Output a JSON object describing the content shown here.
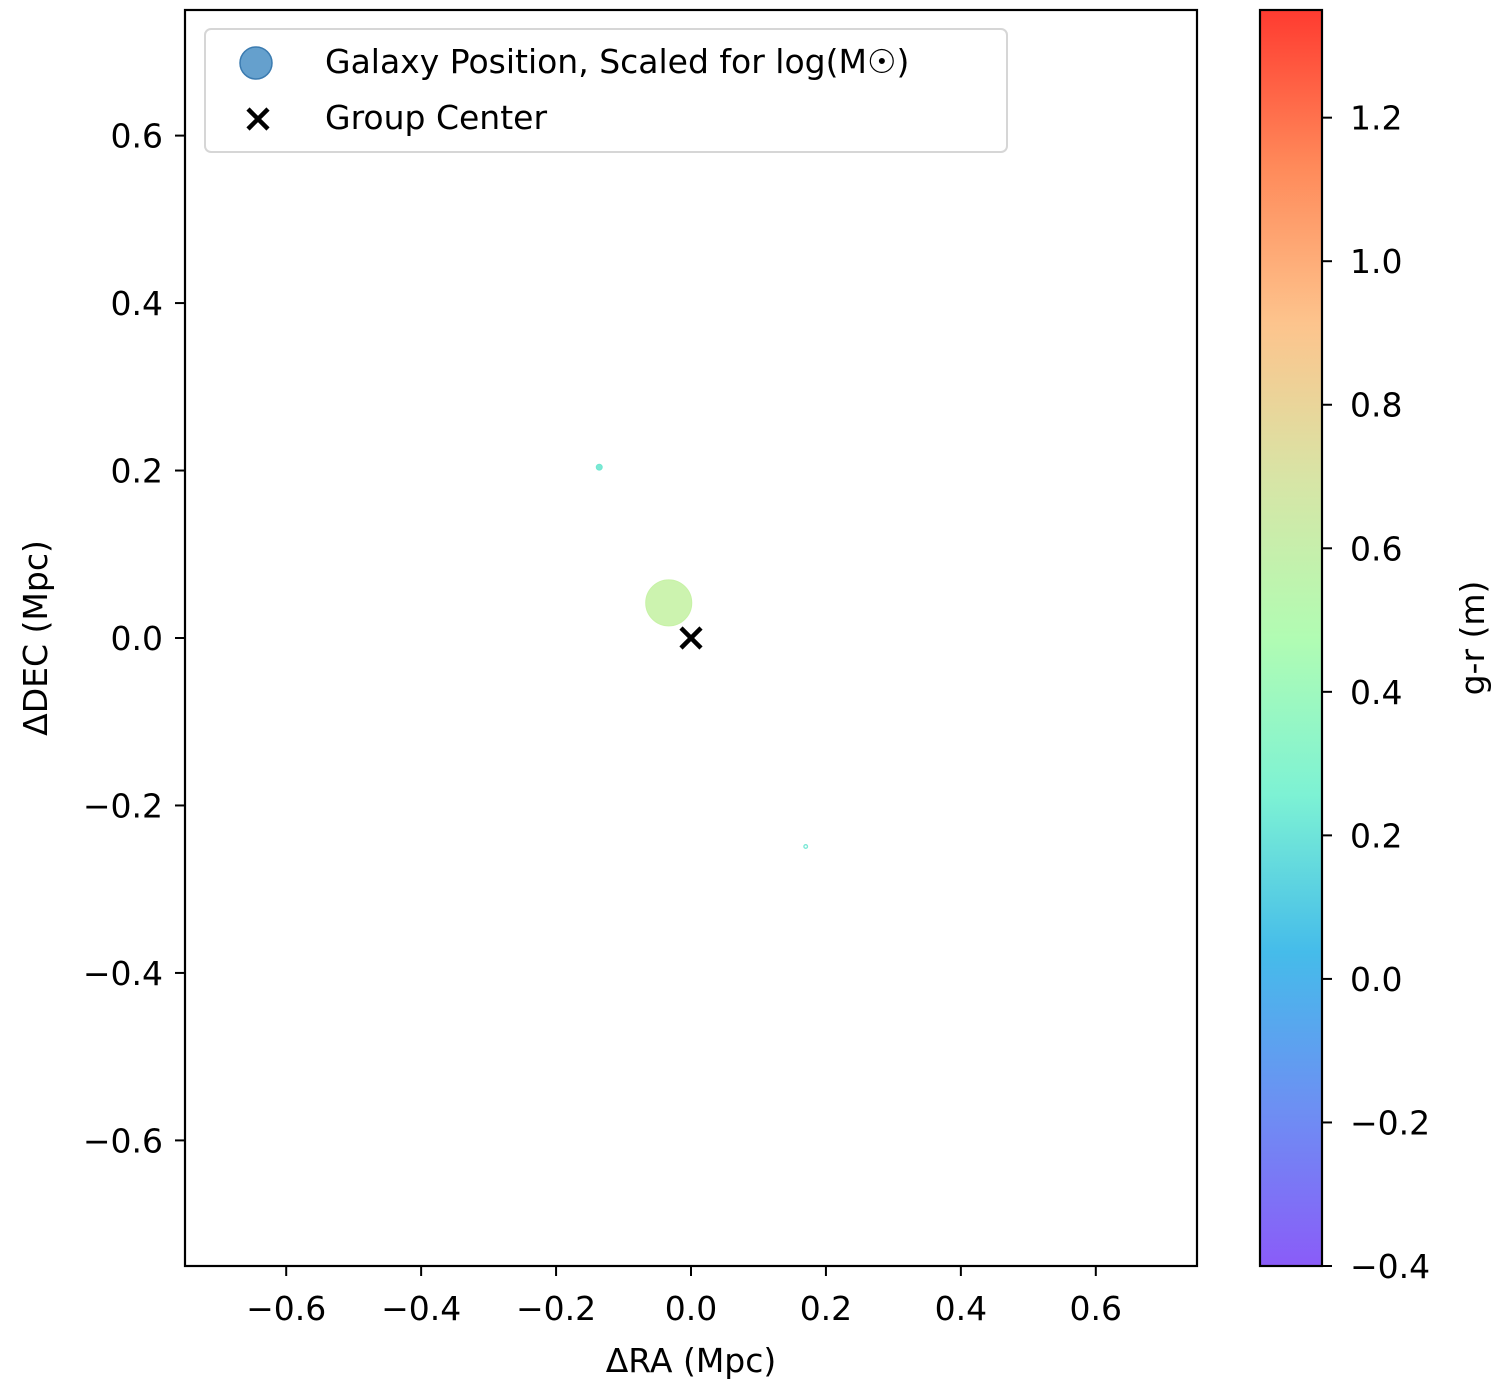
{
  "chart_data": {
    "type": "scatter",
    "xlabel": "ΔRA (Mpc)",
    "ylabel": "ΔDEC (Mpc)",
    "xlim": [
      -0.75,
      0.75
    ],
    "ylim": [
      -0.75,
      0.75
    ],
    "x_ticks": [
      {
        "value": -0.6,
        "label": "−0.6"
      },
      {
        "value": -0.4,
        "label": "−0.4"
      },
      {
        "value": -0.2,
        "label": "−0.2"
      },
      {
        "value": 0.0,
        "label": "0.0"
      },
      {
        "value": 0.2,
        "label": "0.2"
      },
      {
        "value": 0.4,
        "label": "0.4"
      },
      {
        "value": 0.6,
        "label": "0.6"
      }
    ],
    "y_ticks": [
      {
        "value": 0.6,
        "label": "0.6"
      },
      {
        "value": 0.4,
        "label": "0.4"
      },
      {
        "value": 0.2,
        "label": "0.2"
      },
      {
        "value": 0.0,
        "label": "0.0"
      },
      {
        "value": -0.2,
        "label": "−0.2"
      },
      {
        "value": -0.4,
        "label": "−0.4"
      },
      {
        "value": -0.6,
        "label": "−0.6"
      }
    ],
    "grid": false,
    "legend_position": "upper-left",
    "series": [
      {
        "name": "Galaxy Position, Scaled for log(M☉)",
        "marker": "circle",
        "legend_color": "#4a8fc4",
        "points": [
          {
            "x": -0.033,
            "y": 0.042,
            "g_r": 0.65,
            "color": "#c7f2a6",
            "size_rel": 1.0
          },
          {
            "x": -0.136,
            "y": 0.204,
            "g_r": 0.33,
            "color": "#6ee6cf",
            "size_rel": 0.13
          },
          {
            "x": 0.17,
            "y": -0.249,
            "g_r": 0.3,
            "color": "#7ae8d6",
            "size_rel": 0.06,
            "hollow": true
          }
        ]
      },
      {
        "name": "Group Center",
        "marker": "x",
        "color": "#000000",
        "points": [
          {
            "x": 0.0,
            "y": 0.0
          }
        ]
      }
    ],
    "colorbar": {
      "label": "g-r (m)",
      "range": [
        -0.4,
        1.35
      ],
      "colormap": "rainbow",
      "ticks": [
        {
          "value": 1.2,
          "label": "1.2"
        },
        {
          "value": 1.0,
          "label": "1.0"
        },
        {
          "value": 0.8,
          "label": "0.8"
        },
        {
          "value": 0.6,
          "label": "0.6"
        },
        {
          "value": 0.4,
          "label": "0.4"
        },
        {
          "value": 0.2,
          "label": "0.2"
        },
        {
          "value": 0.0,
          "label": "0.0"
        },
        {
          "value": -0.2,
          "label": "−0.2"
        },
        {
          "value": -0.4,
          "label": "−0.4"
        }
      ],
      "stops": [
        "#ff3b30",
        "#ff8a5a",
        "#fdc48d",
        "#d7e5a6",
        "#b1fcb3",
        "#7df2d4",
        "#45bcea",
        "#6d8ff3",
        "#8a5cf8"
      ]
    }
  }
}
